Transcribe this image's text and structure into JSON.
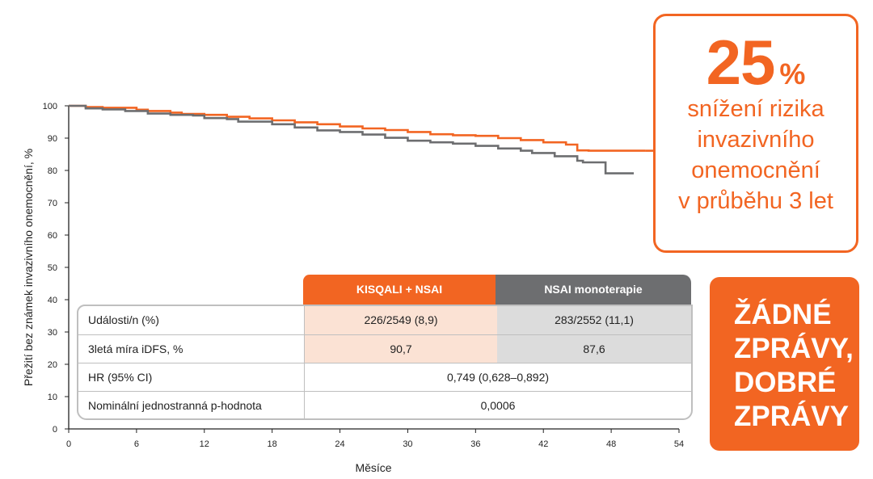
{
  "chart_data": {
    "type": "line",
    "title": "",
    "xlabel": "Měsíce",
    "ylabel": "Přežití bez známek invazivního onemocnění, %",
    "xlim": [
      0,
      54
    ],
    "ylim": [
      0,
      100
    ],
    "xticks": [
      0,
      6,
      12,
      18,
      24,
      30,
      36,
      42,
      48,
      54
    ],
    "yticks": [
      0,
      10,
      20,
      30,
      40,
      50,
      60,
      70,
      80,
      90,
      100
    ],
    "series": [
      {
        "name": "KISQALI + NSAI",
        "color": "#f26522",
        "x": [
          0,
          1,
          1.5,
          3,
          6,
          7,
          9,
          10,
          12,
          14,
          16,
          18,
          20,
          22,
          24,
          26,
          28,
          30,
          32,
          34,
          36,
          38,
          40,
          42,
          44,
          45,
          46,
          48,
          50,
          51
        ],
        "y": [
          100,
          100,
          99.6,
          99.4,
          98.8,
          98.4,
          97.9,
          97.5,
          97.2,
          96.6,
          96.1,
          95.5,
          94.9,
          94.3,
          93.6,
          93.0,
          92.5,
          91.9,
          91.2,
          90.9,
          90.7,
          90.0,
          89.4,
          88.7,
          88.0,
          86.2,
          86.1,
          86.1,
          86.1,
          86.1
        ]
      },
      {
        "name": "NSAI monoterapie",
        "color": "#6d6e70",
        "x": [
          0,
          1,
          1.5,
          3,
          5,
          7,
          9,
          11,
          12,
          14,
          15,
          18,
          20,
          22,
          24,
          26,
          28,
          30,
          32,
          34,
          36,
          38,
          40,
          41,
          43,
          45,
          45.5,
          47,
          47.5,
          48,
          50
        ],
        "y": [
          100,
          100,
          99.2,
          98.9,
          98.4,
          97.6,
          97.2,
          97.0,
          96.2,
          95.9,
          95.1,
          94.3,
          93.3,
          92.4,
          91.9,
          91.1,
          90.1,
          89.2,
          88.7,
          88.3,
          87.6,
          86.8,
          86.1,
          85.4,
          84.4,
          83.0,
          82.5,
          82.5,
          79.1,
          79.1,
          79.1
        ]
      }
    ]
  },
  "table": {
    "headers": [
      "KISQALI + NSAI",
      "NSAI monoterapie"
    ],
    "rows": [
      {
        "label": "Události/n (%)",
        "kisqali": "226/2549 (8,9)",
        "nsai": "283/2552 (11,1)"
      },
      {
        "label": "3letá míra iDFS, %",
        "kisqali": "90,7",
        "nsai": "87,6"
      },
      {
        "label": "HR (95% CI)",
        "span": "0,749 (0,628–0,892)"
      },
      {
        "label": "Nominální jednostranná p-hodnota",
        "span": "0,0006"
      }
    ]
  },
  "callout": {
    "number": "25",
    "percent": "%",
    "lines": [
      "snížení rizika",
      "invazivního",
      "onemocnění",
      "v průběhu 3 let"
    ]
  },
  "badge": {
    "lines": [
      "ŽÁDNÉ",
      "ZPRÁVY,",
      "DOBRÉ",
      "ZPRÁVY"
    ]
  },
  "colors": {
    "accent": "#f26522",
    "gray": "#6d6e70",
    "light_orange": "#fbe2d4",
    "light_gray": "#dcdcdc"
  }
}
